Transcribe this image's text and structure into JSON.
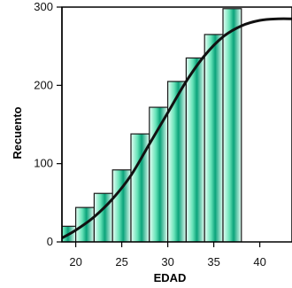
{
  "chart_data": {
    "type": "bar",
    "subtype": "histogram",
    "title": "",
    "xlabel": "EDAD",
    "ylabel": "Recuento",
    "xlim": [
      18.5,
      43.5
    ],
    "ylim": [
      0,
      300
    ],
    "bin_width": 2,
    "x_ticks": [
      20,
      25,
      30,
      35,
      40
    ],
    "y_ticks": [
      0,
      100,
      200,
      300
    ],
    "bins": [
      {
        "start": 18,
        "end": 20,
        "value": 20
      },
      {
        "start": 20,
        "end": 22,
        "value": 44
      },
      {
        "start": 22,
        "end": 24,
        "value": 62
      },
      {
        "start": 24,
        "end": 26,
        "value": 92
      },
      {
        "start": 26,
        "end": 28,
        "value": 138
      },
      {
        "start": 28,
        "end": 30,
        "value": 172
      },
      {
        "start": 30,
        "end": 32,
        "value": 205
      },
      {
        "start": 32,
        "end": 34,
        "value": 235
      },
      {
        "start": 34,
        "end": 36,
        "value": 265
      },
      {
        "start": 36,
        "end": 38,
        "value": 298
      }
    ],
    "curve": [
      {
        "x": 18.5,
        "y": 5
      },
      {
        "x": 20,
        "y": 15
      },
      {
        "x": 22,
        "y": 32
      },
      {
        "x": 24,
        "y": 55
      },
      {
        "x": 26,
        "y": 85
      },
      {
        "x": 28,
        "y": 125
      },
      {
        "x": 30,
        "y": 165
      },
      {
        "x": 32,
        "y": 205
      },
      {
        "x": 34,
        "y": 238
      },
      {
        "x": 36,
        "y": 262
      },
      {
        "x": 38,
        "y": 276
      },
      {
        "x": 40,
        "y": 283
      },
      {
        "x": 42,
        "y": 285
      },
      {
        "x": 43.5,
        "y": 285
      }
    ],
    "grid": false,
    "legend": "none",
    "colors": {
      "bar_edge": "#1a1a1a",
      "bar_light": "#e9fff6",
      "bar_mid": "#67e3b8",
      "bar_dark": "#0aa37a",
      "curve": "#111111",
      "axis": "#000000"
    }
  }
}
